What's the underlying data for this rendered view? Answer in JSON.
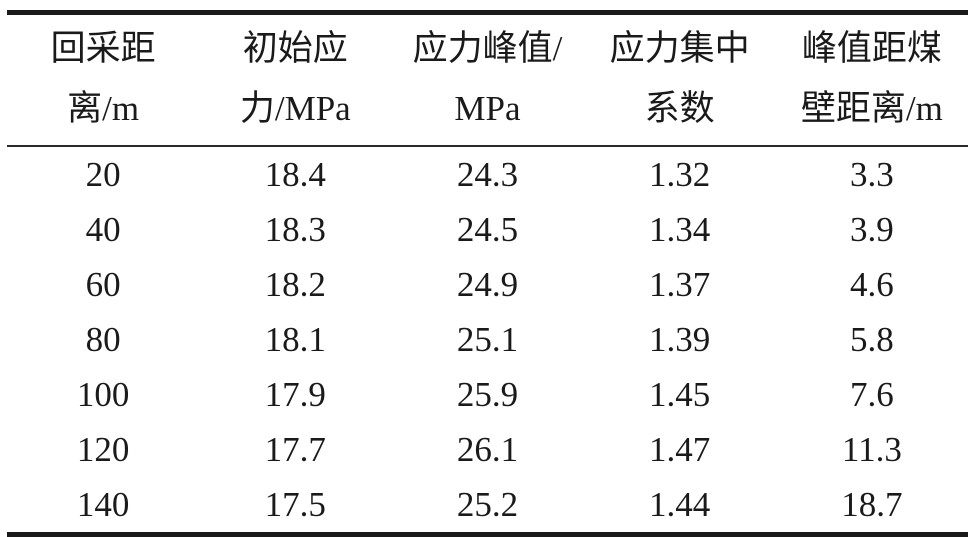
{
  "colors": {
    "background": "#ffffff",
    "text": "#1a1a1a",
    "rule_thick": "#1a1a1a",
    "rule_thin": "#2a2a2a"
  },
  "table": {
    "columns": [
      {
        "header": "回采距\n离/m"
      },
      {
        "header": "初始应\n力/MPa"
      },
      {
        "header": "应力峰值/\nMPa"
      },
      {
        "header": "应力集中\n系数"
      },
      {
        "header": "峰值距煤\n壁距离/m"
      }
    ],
    "rows": [
      [
        "20",
        "18.4",
        "24.3",
        "1.32",
        "3.3"
      ],
      [
        "40",
        "18.3",
        "24.5",
        "1.34",
        "3.9"
      ],
      [
        "60",
        "18.2",
        "24.9",
        "1.37",
        "4.6"
      ],
      [
        "80",
        "18.1",
        "25.1",
        "1.39",
        "5.8"
      ],
      [
        "100",
        "17.9",
        "25.9",
        "1.45",
        "7.6"
      ],
      [
        "120",
        "17.7",
        "26.1",
        "1.47",
        "11.3"
      ],
      [
        "140",
        "17.5",
        "25.2",
        "1.44",
        "18.7"
      ]
    ]
  },
  "chart_data": {
    "type": "table",
    "title": "",
    "columns": [
      "回采距离/m",
      "初始应力/MPa",
      "应力峰值/MPa",
      "应力集中系数",
      "峰值距煤壁距离/m"
    ],
    "rows": [
      [
        20,
        18.4,
        24.3,
        1.32,
        3.3
      ],
      [
        40,
        18.3,
        24.5,
        1.34,
        3.9
      ],
      [
        60,
        18.2,
        24.9,
        1.37,
        4.6
      ],
      [
        80,
        18.1,
        25.1,
        1.39,
        5.8
      ],
      [
        100,
        17.9,
        25.9,
        1.45,
        7.6
      ],
      [
        120,
        17.7,
        26.1,
        1.47,
        11.3
      ],
      [
        140,
        17.5,
        25.2,
        1.44,
        18.7
      ]
    ],
    "layout": {
      "header_lines": 2,
      "alignment": "center",
      "top_rule": "thick",
      "header_rule": "thin",
      "bottom_rule": "thick",
      "vertical_rules": false
    }
  }
}
